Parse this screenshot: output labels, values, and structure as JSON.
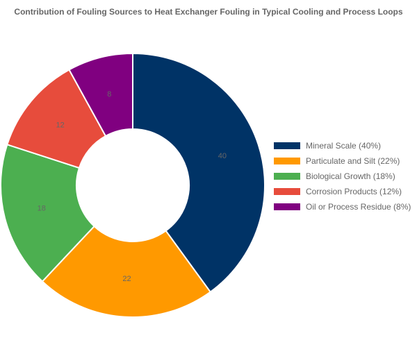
{
  "chart_data": {
    "type": "pie",
    "variant": "donut",
    "title": "Contribution of Fouling Sources to Heat Exchanger Fouling in Typical Cooling and Process Loops",
    "categories": [
      "Mineral Scale",
      "Particulate and Silt",
      "Biological Growth",
      "Corrosion Products",
      "Oil or Process Residue"
    ],
    "values": [
      40,
      22,
      18,
      12,
      8
    ],
    "data_labels": [
      "40",
      "22",
      "18",
      "12",
      "8"
    ],
    "legend": {
      "position": "right",
      "entries": [
        "Mineral Scale (40%)",
        "Particulate and Silt (22%)",
        "Biological Growth (18%)",
        "Corrosion Products (12%)",
        "Oil or Process Residue (8%)"
      ]
    },
    "colors": [
      "#003366",
      "#FF9900",
      "#4CAF50",
      "#E74C3C",
      "#800080"
    ]
  }
}
